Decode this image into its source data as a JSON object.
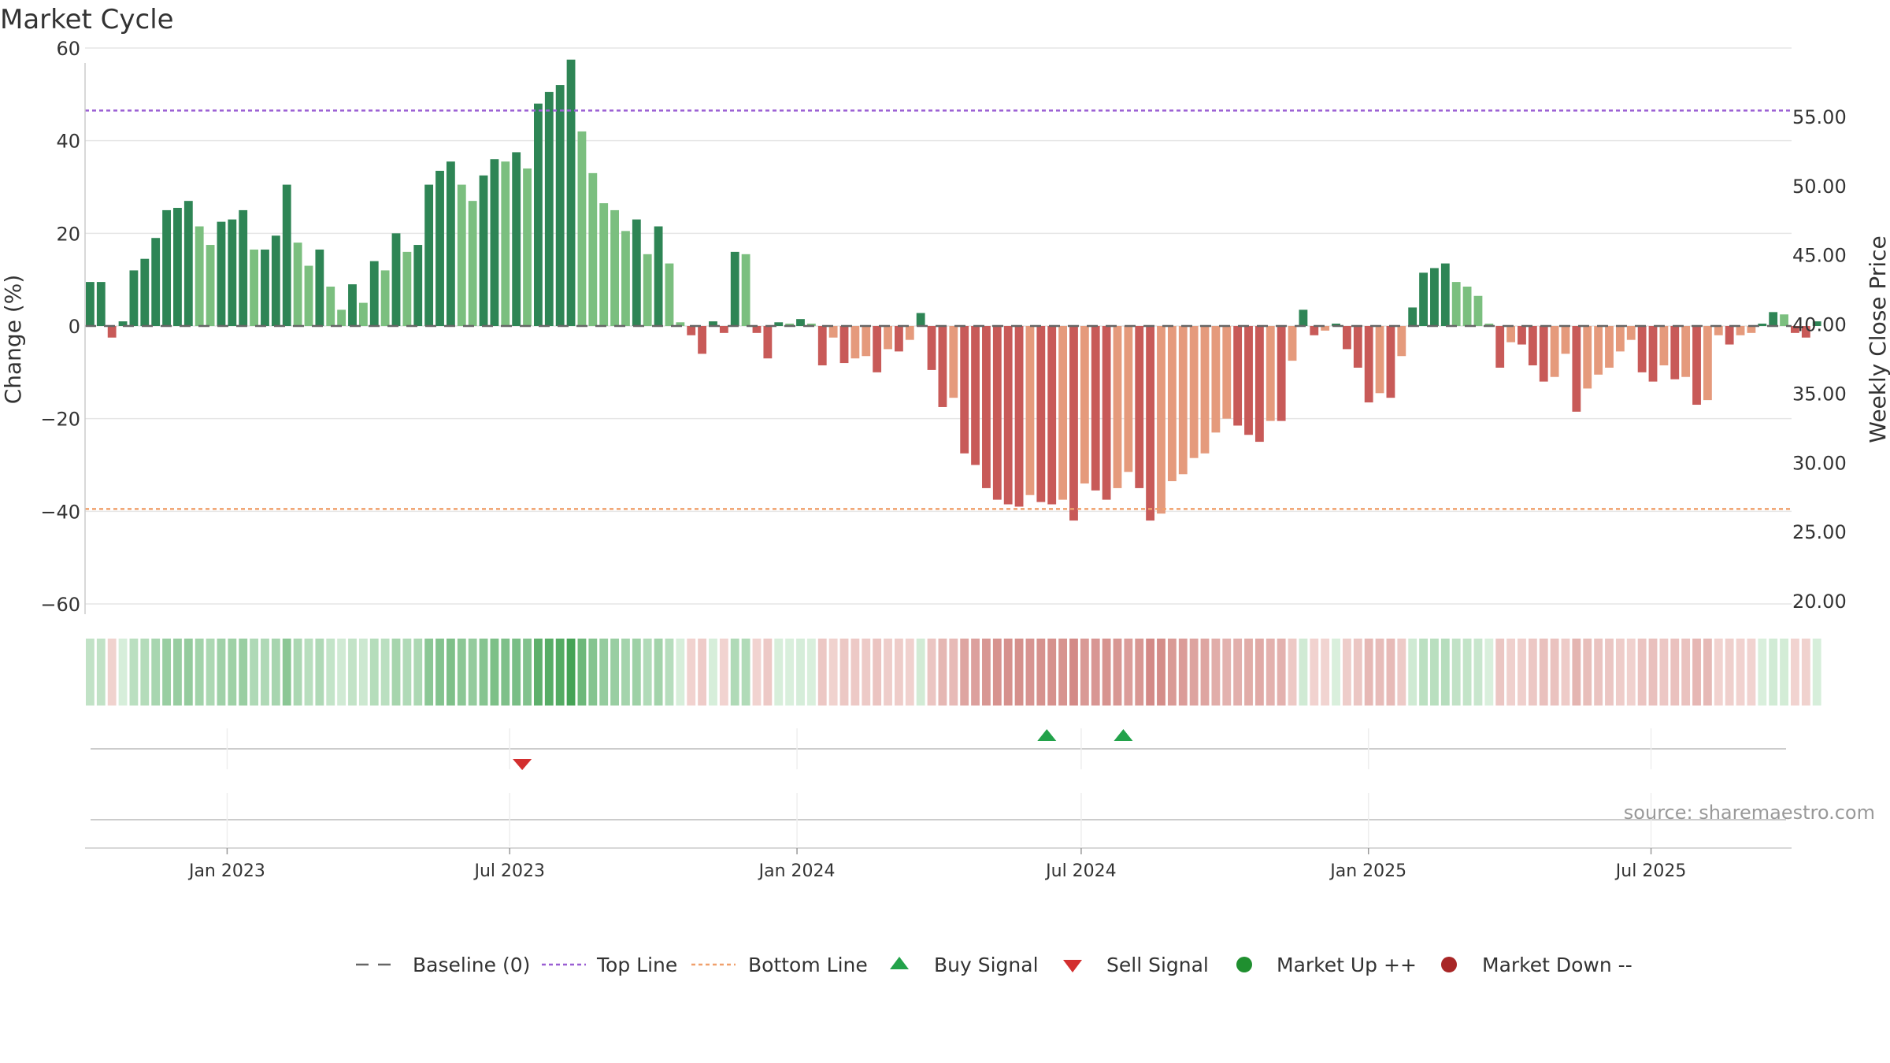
{
  "chart_data": {
    "type": "bar",
    "title": "Market Cycle",
    "ylabel": "Change (%)",
    "y2label": "Weekly Close Price",
    "ylim": [
      -62,
      62
    ],
    "y2lim": [
      19.5,
      58.5
    ],
    "yticks": [
      60,
      40,
      20,
      0,
      -20,
      -40,
      -60
    ],
    "y2ticks": [
      "55.00",
      "50.00",
      "45.00",
      "40.00",
      "35.00",
      "30.00",
      "25.00",
      "20.00"
    ],
    "top_line": 46.5,
    "bottom_line": -39.5,
    "x_start": "2022-10-02",
    "x_end": "2025-09-29",
    "x_tick_labels": [
      {
        "date": "2023-01-01",
        "label": "Jan 2023"
      },
      {
        "date": "2023-07-01",
        "label": "Jul 2023"
      },
      {
        "date": "2024-01-01",
        "label": "Jan 2024"
      },
      {
        "date": "2024-07-01",
        "label": "Jul 2024"
      },
      {
        "date": "2025-01-01",
        "label": "Jan 2025"
      },
      {
        "date": "2025-07-01",
        "label": "Jul 2025"
      }
    ],
    "series": [
      {
        "first_week": "2022-10-02",
        "interval_days": 7,
        "values": [
          9.5,
          9.5,
          -2.5,
          1,
          12,
          14.5,
          19,
          25,
          25.5,
          27,
          21.5,
          17.5,
          22.5,
          23,
          25,
          16.5,
          16.5,
          19.5,
          30.5,
          18,
          13,
          16.5,
          8.5,
          3.5,
          9,
          5,
          14,
          12,
          20,
          16,
          17.5,
          30.5,
          33.5,
          35.5,
          30.5,
          27,
          32.5,
          36,
          35.5,
          37.5,
          34,
          48,
          50.5,
          52,
          57.5,
          42,
          33,
          26.5,
          25,
          20.5,
          23,
          15.5,
          21.5,
          13.5,
          0.8,
          -2,
          -6,
          1,
          -1.5,
          16,
          15.5,
          -1.5,
          -7,
          0.8,
          0,
          1.5,
          0,
          -8.5,
          -2.5,
          -8,
          -7,
          -6.5,
          -10,
          -5,
          -5.5,
          -3,
          2.8,
          -9.5,
          -17.5,
          -15.5,
          -27.5,
          -30,
          -35,
          -37.5,
          -38.5,
          -39,
          -36.5,
          -38,
          -38.5,
          -37.5,
          -42,
          -34,
          -35.5,
          -37.5,
          -35,
          -31.5,
          -35,
          -42,
          -40.5,
          -33.5,
          -32,
          -28.5,
          -27.5,
          -23,
          -20,
          -21.5,
          -23.5,
          -25,
          -20.5,
          -20.5,
          -7.5,
          3.5,
          -2,
          -1,
          0,
          -5,
          -9,
          -16.5,
          -14.5,
          -15.5,
          -6.5,
          4,
          11.5,
          12.5,
          13.5,
          9.5,
          8.5,
          6.5,
          0,
          -9,
          -3.5,
          -4,
          -8.5,
          -12,
          -11,
          -6,
          -18.5,
          -13.5,
          -10.5,
          -9,
          -5.5,
          -3,
          -10,
          -12,
          -8.5,
          -11.5,
          -11,
          -17,
          -16,
          -2,
          -4,
          -2,
          -1.5,
          0,
          3,
          2.5,
          -1.5,
          -2.5,
          1
        ]
      }
    ],
    "sell_signals": [
      "2023-07-09"
    ],
    "buy_signals": [
      "2024-06-09",
      "2024-07-28"
    ],
    "source_text": "source: sharemaestro.com",
    "legend_position": "bottom-center",
    "legend": [
      {
        "name": "baseline",
        "label": "Baseline (0)"
      },
      {
        "name": "top-line",
        "label": "Top Line"
      },
      {
        "name": "bottom-line",
        "label": "Bottom Line"
      },
      {
        "name": "buy-signal",
        "label": "Buy Signal"
      },
      {
        "name": "sell-signal",
        "label": "Sell Signal"
      },
      {
        "name": "market-up",
        "label": "Market Up ++"
      },
      {
        "name": "market-down",
        "label": "Market Down --"
      }
    ],
    "colors": {
      "up_dark": "#2e8555",
      "up_light": "#7bbf7f",
      "down_dark": "#c85a58",
      "down_light": "#e59a7c",
      "top_line": "#9a5fd3",
      "bottom_line": "#f0a06c",
      "buy": "#22a24a",
      "sell": "#d32f2f",
      "market_up": "#1f8f2f",
      "market_down": "#a82626",
      "grid": "#e6e6e6",
      "axis_text": "#333333",
      "source_text": "#999999"
    }
  }
}
